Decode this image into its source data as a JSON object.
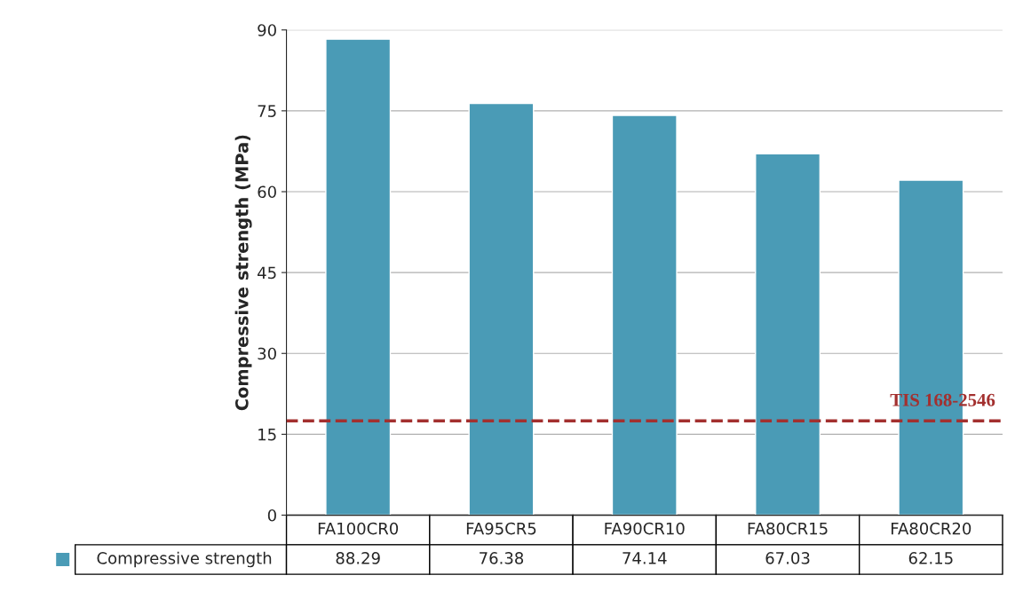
{
  "chart_data": {
    "type": "bar",
    "ylabel": "Compressive strength (MPa)",
    "categories": [
      "FA100CR0",
      "FA95CR5",
      "FA90CR10",
      "FA80CR15",
      "FA80CR20"
    ],
    "series": [
      {
        "name": "Compressive strength",
        "color": "#4a9bb6",
        "values": [
          88.29,
          76.38,
          74.14,
          67.03,
          62.15
        ]
      }
    ],
    "ylim": [
      0,
      90
    ],
    "yticks": [
      0,
      15,
      30,
      45,
      60,
      75,
      90
    ],
    "grid": "y",
    "data_labels": true,
    "tick_labels": "y",
    "ref_lines": [
      {
        "axis": "y",
        "value": 17.5,
        "label": "TIS 168-2546",
        "color": "#a3302f",
        "line_style": "dashed"
      }
    ]
  }
}
